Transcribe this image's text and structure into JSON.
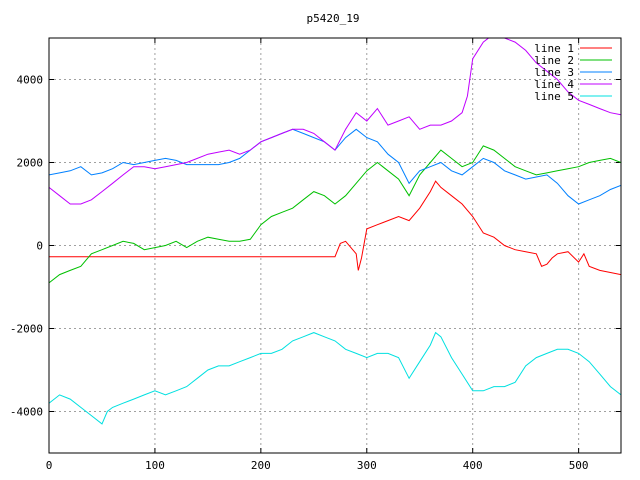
{
  "chart_data": {
    "type": "line",
    "title": "p5420_19",
    "xlabel": "",
    "ylabel": "",
    "xlim": [
      0,
      540
    ],
    "ylim": [
      -5000,
      5000
    ],
    "xticks": [
      0,
      100,
      200,
      300,
      400,
      500
    ],
    "yticks": [
      -4000,
      -2000,
      0,
      2000,
      4000
    ],
    "grid": true,
    "legend_position": "top-right",
    "series": [
      {
        "name": "line 1",
        "color": "#ff0000",
        "x": [
          0,
          270,
          275,
          280,
          285,
          290,
          292,
          295,
          300,
          310,
          320,
          330,
          340,
          350,
          360,
          365,
          370,
          380,
          390,
          400,
          410,
          420,
          430,
          440,
          450,
          460,
          465,
          470,
          475,
          480,
          490,
          500,
          505,
          510,
          520,
          530,
          540
        ],
        "y": [
          -270,
          -270,
          50,
          100,
          -50,
          -200,
          -600,
          -300,
          400,
          500,
          600,
          700,
          600,
          900,
          1300,
          1550,
          1400,
          1200,
          1000,
          700,
          300,
          200,
          0,
          -100,
          -150,
          -200,
          -500,
          -450,
          -300,
          -200,
          -150,
          -400,
          -200,
          -500,
          -600,
          -650,
          -700
        ]
      },
      {
        "name": "line 2",
        "color": "#00c000",
        "x": [
          0,
          10,
          20,
          30,
          40,
          50,
          60,
          70,
          80,
          90,
          100,
          110,
          120,
          130,
          140,
          150,
          160,
          170,
          180,
          190,
          200,
          210,
          220,
          230,
          240,
          250,
          260,
          270,
          280,
          290,
          300,
          310,
          320,
          330,
          340,
          350,
          360,
          370,
          380,
          390,
          400,
          410,
          420,
          430,
          440,
          450,
          460,
          470,
          480,
          490,
          500,
          510,
          520,
          530,
          540
        ],
        "y": [
          -900,
          -700,
          -600,
          -500,
          -200,
          -100,
          0,
          100,
          50,
          -100,
          -50,
          0,
          100,
          -50,
          100,
          200,
          150,
          100,
          100,
          150,
          500,
          700,
          800,
          900,
          1100,
          1300,
          1200,
          1000,
          1200,
          1500,
          1800,
          2000,
          1800,
          1600,
          1200,
          1700,
          2000,
          2300,
          2100,
          1900,
          2000,
          2400,
          2300,
          2100,
          1900,
          1800,
          1700,
          1750,
          1800,
          1850,
          1900,
          2000,
          2050,
          2100,
          2000
        ]
      },
      {
        "name": "line 3",
        "color": "#0080ff",
        "x": [
          0,
          10,
          20,
          30,
          40,
          50,
          60,
          70,
          80,
          90,
          100,
          110,
          120,
          130,
          140,
          150,
          160,
          170,
          180,
          190,
          200,
          210,
          220,
          230,
          240,
          250,
          260,
          270,
          280,
          290,
          300,
          310,
          320,
          330,
          340,
          350,
          360,
          370,
          380,
          390,
          400,
          410,
          420,
          430,
          440,
          450,
          460,
          470,
          480,
          490,
          500,
          510,
          520,
          530,
          540
        ],
        "y": [
          1700,
          1750,
          1800,
          1900,
          1700,
          1750,
          1850,
          2000,
          1950,
          2000,
          2050,
          2100,
          2050,
          1950,
          1950,
          1950,
          1950,
          2000,
          2100,
          2300,
          2500,
          2600,
          2700,
          2800,
          2700,
          2600,
          2500,
          2300,
          2600,
          2800,
          2600,
          2500,
          2200,
          2000,
          1500,
          1800,
          1900,
          2000,
          1800,
          1700,
          1900,
          2100,
          2000,
          1800,
          1700,
          1600,
          1650,
          1700,
          1500,
          1200,
          1000,
          1100,
          1200,
          1350,
          1450
        ]
      },
      {
        "name": "line 4",
        "color": "#c000ff",
        "x": [
          0,
          10,
          20,
          30,
          40,
          50,
          60,
          70,
          80,
          90,
          100,
          110,
          120,
          130,
          140,
          150,
          160,
          170,
          180,
          190,
          200,
          210,
          220,
          230,
          240,
          250,
          260,
          270,
          280,
          290,
          300,
          310,
          320,
          330,
          340,
          350,
          360,
          370,
          380,
          390,
          395,
          400,
          410,
          420,
          430,
          440,
          450,
          460,
          470,
          480,
          490,
          500,
          510,
          520,
          530,
          540
        ],
        "y": [
          1400,
          1200,
          1000,
          1000,
          1100,
          1300,
          1500,
          1700,
          1900,
          1900,
          1850,
          1900,
          1950,
          2000,
          2100,
          2200,
          2250,
          2300,
          2200,
          2300,
          2500,
          2600,
          2700,
          2800,
          2800,
          2700,
          2500,
          2300,
          2800,
          3200,
          3000,
          3300,
          2900,
          3000,
          3100,
          2800,
          2900,
          2900,
          3000,
          3200,
          3600,
          4500,
          4900,
          5100,
          5000,
          4900,
          4700,
          4400,
          4200,
          4000,
          3700,
          3500,
          3400,
          3300,
          3200,
          3150
        ]
      },
      {
        "name": "line 5",
        "color": "#00e0e0",
        "x": [
          0,
          10,
          20,
          30,
          40,
          50,
          55,
          60,
          70,
          80,
          90,
          100,
          110,
          120,
          130,
          140,
          150,
          160,
          170,
          180,
          190,
          200,
          210,
          220,
          230,
          240,
          250,
          260,
          270,
          280,
          290,
          300,
          310,
          320,
          330,
          340,
          350,
          360,
          365,
          370,
          380,
          390,
          400,
          410,
          420,
          430,
          440,
          450,
          460,
          470,
          480,
          490,
          500,
          510,
          520,
          530,
          540
        ],
        "y": [
          -3800,
          -3600,
          -3700,
          -3900,
          -4100,
          -4300,
          -4000,
          -3900,
          -3800,
          -3700,
          -3600,
          -3500,
          -3600,
          -3500,
          -3400,
          -3200,
          -3000,
          -2900,
          -2900,
          -2800,
          -2700,
          -2600,
          -2600,
          -2500,
          -2300,
          -2200,
          -2100,
          -2200,
          -2300,
          -2500,
          -2600,
          -2700,
          -2600,
          -2600,
          -2700,
          -3200,
          -2800,
          -2400,
          -2100,
          -2200,
          -2700,
          -3100,
          -3500,
          -3500,
          -3400,
          -3400,
          -3300,
          -2900,
          -2700,
          -2600,
          -2500,
          -2500,
          -2600,
          -2800,
          -3100,
          -3400,
          -3600
        ]
      }
    ]
  }
}
